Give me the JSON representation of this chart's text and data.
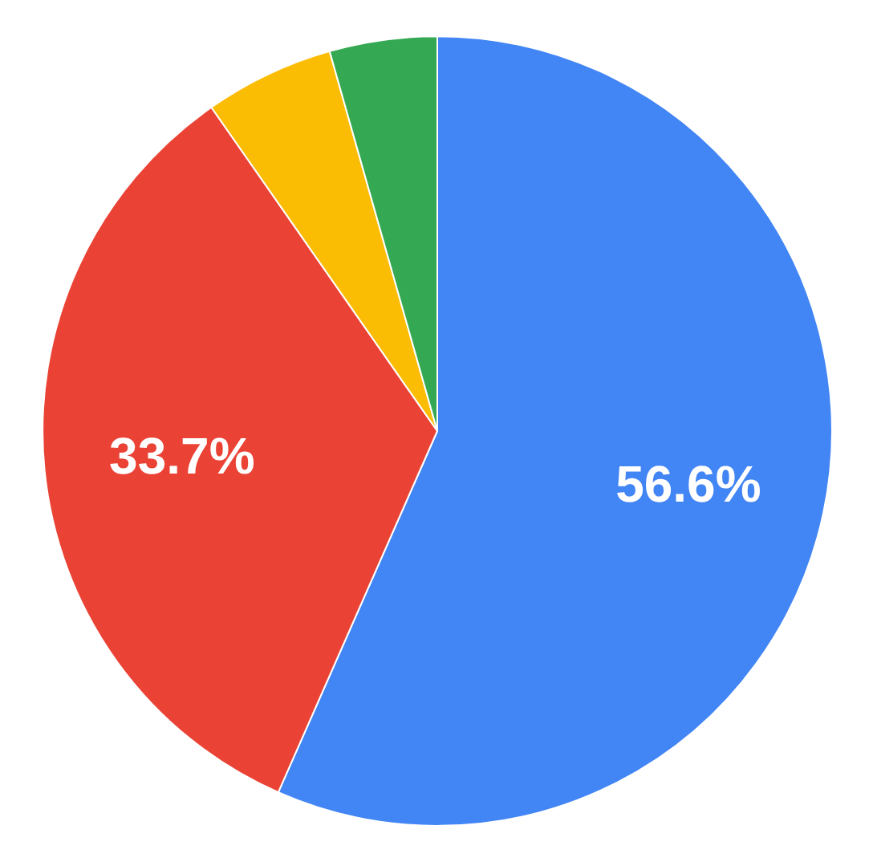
{
  "chart_data": {
    "type": "pie",
    "categories": [
      null,
      null,
      null,
      null
    ],
    "values": [
      56.6,
      33.7,
      5.3,
      4.4
    ],
    "colors": [
      "#4285f4",
      "#ea4335",
      "#fbbc04",
      "#34a853"
    ],
    "value_labels": [
      "56.6%",
      "33.7%",
      null,
      null
    ]
  }
}
